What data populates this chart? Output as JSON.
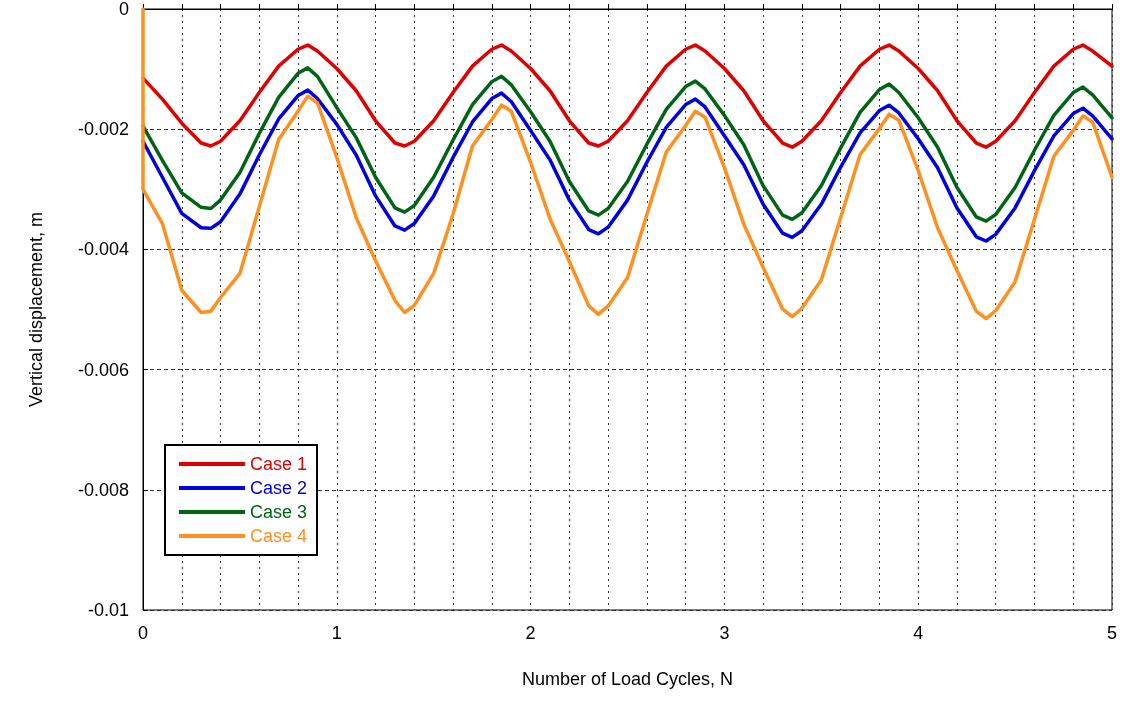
{
  "chart_data": {
    "type": "line",
    "xlabel": "Number of Load Cycles, N",
    "ylabel": "Vertical displacement, m",
    "x": [
      0,
      0.1,
      0.2,
      0.3,
      0.35,
      0.4,
      0.5,
      0.6,
      0.7,
      0.8,
      0.85,
      0.9,
      1,
      1.1,
      1.2,
      1.3,
      1.35,
      1.4,
      1.5,
      1.6,
      1.7,
      1.8,
      1.85,
      1.9,
      2,
      2.1,
      2.2,
      2.3,
      2.35,
      2.4,
      2.5,
      2.6,
      2.7,
      2.8,
      2.85,
      2.9,
      3,
      3.1,
      3.2,
      3.3,
      3.35,
      3.4,
      3.5,
      3.6,
      3.7,
      3.8,
      3.85,
      3.9,
      4,
      4.1,
      4.2,
      4.3,
      4.35,
      4.4,
      4.5,
      4.6,
      4.7,
      4.8,
      4.85,
      4.9,
      5
    ],
    "series": [
      {
        "name": "Case 1",
        "color": "#e00000",
        "values": [
          -0.00115,
          -0.0015,
          -0.0019,
          -0.00223,
          -0.00228,
          -0.0022,
          -0.00186,
          -0.00139,
          -0.00095,
          -0.00067,
          -0.0006,
          -0.0007,
          -0.00099,
          -0.00136,
          -0.00186,
          -0.00223,
          -0.00228,
          -0.0022,
          -0.00186,
          -0.00139,
          -0.00095,
          -0.00067,
          -0.0006,
          -0.0007,
          -0.00099,
          -0.00136,
          -0.00186,
          -0.00223,
          -0.00228,
          -0.0022,
          -0.00186,
          -0.00139,
          -0.00095,
          -0.00067,
          -0.0006,
          -0.0007,
          -0.00099,
          -0.00136,
          -0.00186,
          -0.00223,
          -0.0023,
          -0.0022,
          -0.00186,
          -0.00139,
          -0.00095,
          -0.00067,
          -0.0006,
          -0.0007,
          -0.00099,
          -0.00136,
          -0.00186,
          -0.00223,
          -0.0023,
          -0.0022,
          -0.00186,
          -0.00139,
          -0.00095,
          -0.00067,
          -0.0006,
          -0.0007,
          -0.00095
        ]
      },
      {
        "name": "Case 2",
        "color": "#0000e0",
        "values": [
          -0.0022,
          -0.0028,
          -0.0034,
          -0.00364,
          -0.00365,
          -0.00354,
          -0.00308,
          -0.00243,
          -0.00183,
          -0.00144,
          -0.00135,
          -0.00149,
          -0.00192,
          -0.00243,
          -0.00311,
          -0.00361,
          -0.00368,
          -0.00357,
          -0.00311,
          -0.00247,
          -0.00188,
          -0.00149,
          -0.0014,
          -0.00154,
          -0.00202,
          -0.00251,
          -0.00318,
          -0.00367,
          -0.00374,
          -0.00363,
          -0.00318,
          -0.00255,
          -0.00197,
          -0.00159,
          -0.0015,
          -0.00163,
          -0.00211,
          -0.00259,
          -0.00325,
          -0.00373,
          -0.0038,
          -0.00369,
          -0.00325,
          -0.00263,
          -0.00206,
          -0.00169,
          -0.0016,
          -0.00173,
          -0.00216,
          -0.00264,
          -0.00331,
          -0.00379,
          -0.00386,
          -0.00375,
          -0.00331,
          -0.00269,
          -0.00211,
          -0.00174,
          -0.00165,
          -0.00178,
          -0.00216
        ]
      },
      {
        "name": "Case 3",
        "color": "#006414",
        "values": [
          -0.00195,
          -0.00252,
          -0.00306,
          -0.0033,
          -0.00332,
          -0.00318,
          -0.00272,
          -0.00207,
          -0.00147,
          -0.00107,
          -0.00098,
          -0.00112,
          -0.00164,
          -0.00214,
          -0.0028,
          -0.00331,
          -0.00338,
          -0.00327,
          -0.0028,
          -0.00218,
          -0.00159,
          -0.00121,
          -0.00112,
          -0.00126,
          -0.00171,
          -0.0022,
          -0.00287,
          -0.00336,
          -0.00343,
          -0.00332,
          -0.00287,
          -0.00225,
          -0.00167,
          -0.00129,
          -0.0012,
          -0.00133,
          -0.00177,
          -0.00226,
          -0.00294,
          -0.00343,
          -0.0035,
          -0.00339,
          -0.00294,
          -0.00231,
          -0.00172,
          -0.00134,
          -0.00125,
          -0.00139,
          -0.00181,
          -0.0023,
          -0.00297,
          -0.00346,
          -0.00353,
          -0.00342,
          -0.00297,
          -0.00235,
          -0.00177,
          -0.00139,
          -0.0013,
          -0.00143,
          -0.00181
        ]
      },
      {
        "name": "Case 4",
        "color": "#ff9020",
        "x": [
          0,
          0,
          0.1,
          0.2,
          0.3,
          0.35,
          0.4,
          0.5,
          0.6,
          0.7,
          0.8,
          0.85,
          0.9,
          1,
          1.1,
          1.2,
          1.3,
          1.35,
          1.4,
          1.5,
          1.6,
          1.7,
          1.8,
          1.85,
          1.9,
          2,
          2.1,
          2.2,
          2.3,
          2.35,
          2.4,
          2.5,
          2.6,
          2.7,
          2.8,
          2.85,
          2.9,
          3,
          3.1,
          3.2,
          3.3,
          3.35,
          3.4,
          3.5,
          3.6,
          3.7,
          3.8,
          3.85,
          3.9,
          4,
          4.1,
          4.2,
          4.3,
          4.35,
          4.4,
          4.5,
          4.6,
          4.7,
          4.8,
          4.85,
          4.9,
          5
        ],
        "values": [
          0,
          -0.003,
          -0.00357,
          -0.00468,
          -0.00505,
          -0.00503,
          -0.0048,
          -0.0044,
          -0.00329,
          -0.00217,
          -0.0017,
          -0.00145,
          -0.00156,
          -0.00247,
          -0.00347,
          -0.00419,
          -0.00485,
          -0.00505,
          -0.00493,
          -0.0044,
          -0.00341,
          -0.00228,
          -0.00184,
          -0.0016,
          -0.0017,
          -0.00255,
          -0.00349,
          -0.0042,
          -0.00494,
          -0.00508,
          -0.00494,
          -0.00447,
          -0.00342,
          -0.00238,
          -0.00194,
          -0.0017,
          -0.0018,
          -0.00264,
          -0.00358,
          -0.0043,
          -0.00499,
          -0.00512,
          -0.00498,
          -0.00451,
          -0.00347,
          -0.00242,
          -0.00199,
          -0.00175,
          -0.00185,
          -0.00269,
          -0.00364,
          -0.00435,
          -0.00503,
          -0.00515,
          -0.00502,
          -0.00454,
          -0.0035,
          -0.00245,
          -0.00202,
          -0.00178,
          -0.00188,
          -0.0028
        ]
      }
    ],
    "xlim": [
      0,
      5
    ],
    "xticks": [
      0,
      {
        "value": 0.2,
        "label": null
      },
      {
        "value": 0.4,
        "label": null
      },
      {
        "value": 0.6,
        "label": null
      },
      {
        "value": 0.8,
        "label": null
      },
      1,
      {
        "value": 1.2,
        "label": null
      },
      {
        "value": 1.4,
        "label": null
      },
      {
        "value": 1.6,
        "label": null
      },
      {
        "value": 1.8,
        "label": null
      },
      2,
      {
        "value": 2.2,
        "label": null
      },
      {
        "value": 2.4,
        "label": null
      },
      {
        "value": 2.6,
        "label": null
      },
      {
        "value": 2.8,
        "label": null
      },
      3,
      {
        "value": 3.2,
        "label": null
      },
      {
        "value": 3.4,
        "label": null
      },
      {
        "value": 3.6,
        "label": null
      },
      {
        "value": 3.8,
        "label": null
      },
      4,
      {
        "value": 4.2,
        "label": null
      },
      {
        "value": 4.4,
        "label": null
      },
      {
        "value": 4.6,
        "label": null
      },
      {
        "value": 4.8,
        "label": null
      },
      5
    ],
    "ylim": [
      -0.01,
      0
    ],
    "yticks": [
      -0.01,
      -0.008,
      -0.006,
      -0.004,
      -0.002,
      0
    ],
    "grid": true,
    "legend": "bottom left",
    "marker": "none",
    "line_style": "solid"
  }
}
